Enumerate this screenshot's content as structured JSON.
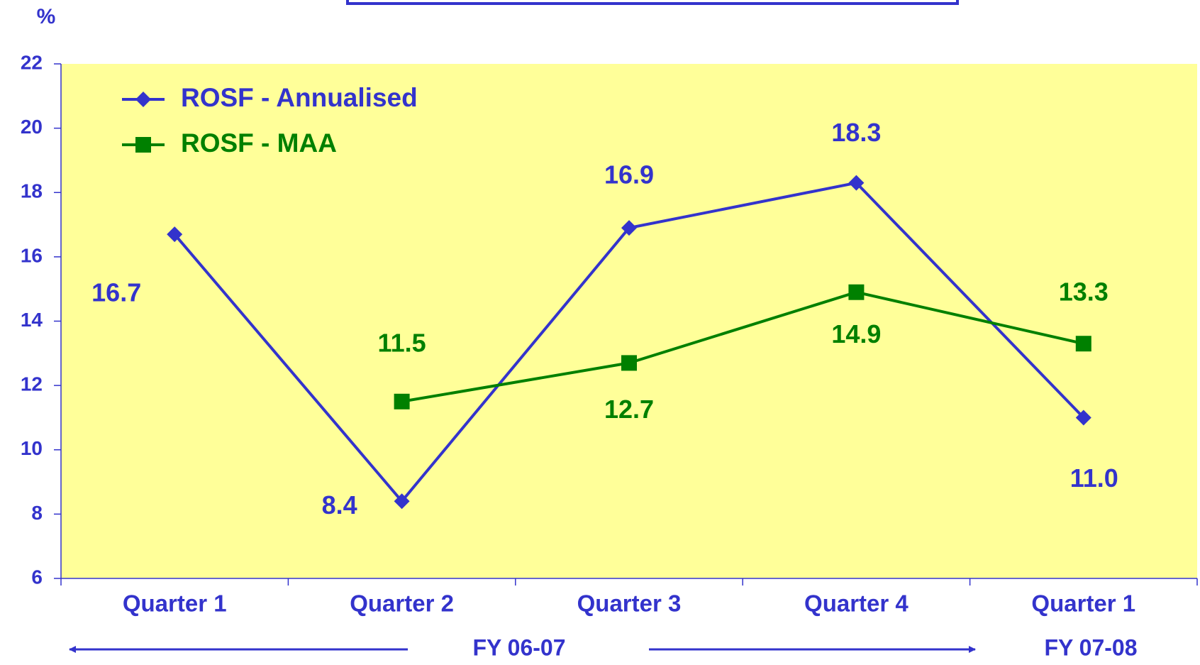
{
  "chart_data": {
    "type": "line",
    "y_label": "%",
    "categories": [
      "Quarter 1",
      "Quarter 2",
      "Quarter 3",
      "Quarter 4",
      "Quarter 1"
    ],
    "series": [
      {
        "name": "ROSF - Annualised",
        "color": "#3333cc",
        "values": [
          16.7,
          8.4,
          16.9,
          18.3,
          11.0
        ],
        "value_labels": [
          "16.7",
          "8.4",
          "16.9",
          "18.3",
          "11.0"
        ]
      },
      {
        "name": "ROSF - MAA",
        "color": "#008000",
        "values": [
          null,
          11.5,
          12.7,
          14.9,
          13.3
        ]
      }
    ],
    "ylim": [
      6,
      22
    ],
    "yticks": [
      6,
      8,
      10,
      12,
      14,
      16,
      18,
      20,
      22
    ],
    "plot_background": "#ffff99",
    "annotations": [
      "FY 06-07",
      "FY 07-08"
    ]
  }
}
